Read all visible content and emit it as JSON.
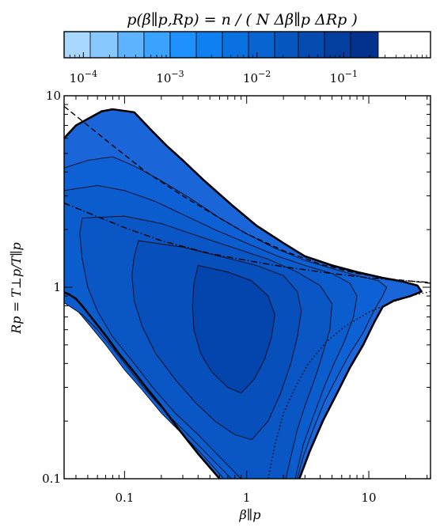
{
  "chart_data": {
    "type": "heatmap",
    "title": "p(β∥p,Rp) = n / ( N Δβ∥p ΔRp )",
    "xlabel": "β∥p",
    "ylabel": "Rp = T⊥p/T∥p",
    "x_scale": "log",
    "y_scale": "log",
    "xlim": [
      0.032,
      32
    ],
    "ylim": [
      0.1,
      10
    ],
    "x_ticks": [
      {
        "value": 0.1,
        "label": "0.1"
      },
      {
        "value": 1,
        "label": "1"
      },
      {
        "value": 10,
        "label": "10"
      }
    ],
    "y_ticks": [
      {
        "value": 0.1,
        "label": "0.1"
      },
      {
        "value": 1,
        "label": "1"
      },
      {
        "value": 10,
        "label": "10"
      }
    ],
    "colorbar": {
      "scale": "log",
      "range": [
        6e-05,
        1
      ],
      "ticks": [
        {
          "value": 0.0001,
          "base": "10",
          "exp": "−4"
        },
        {
          "value": 0.001,
          "base": "10",
          "exp": "−3"
        },
        {
          "value": 0.01,
          "base": "10",
          "exp": "−2"
        },
        {
          "value": 0.1,
          "base": "10",
          "exp": "−1"
        }
      ],
      "levels": [
        6e-05,
        0.00012,
        0.00025,
        0.0005,
        0.001,
        0.002,
        0.004,
        0.008,
        0.016,
        0.03,
        0.06,
        0.12,
        0.25,
        1
      ],
      "colors": [
        "#a8d8ff",
        "#86c8ff",
        "#5fb4ff",
        "#3aa2ff",
        "#1f90ff",
        "#0e80f2",
        "#0a72e0",
        "#0864d0",
        "#0657c0",
        "#054bb0",
        "#033f9f",
        "#02328d"
      ]
    },
    "contour_regions": [
      {
        "level": 0,
        "color": "#1a66d9",
        "points": [
          [
            0.032,
            6.0
          ],
          [
            0.04,
            7.0
          ],
          [
            0.065,
            8.3
          ],
          [
            0.08,
            8.5
          ],
          [
            0.12,
            8.2
          ],
          [
            0.17,
            6.5
          ],
          [
            0.22,
            5.5
          ],
          [
            0.3,
            4.6
          ],
          [
            0.45,
            3.6
          ],
          [
            0.75,
            2.7
          ],
          [
            1.2,
            2.1
          ],
          [
            2.0,
            1.7
          ],
          [
            3.0,
            1.45
          ],
          [
            5.0,
            1.3
          ],
          [
            8.0,
            1.2
          ],
          [
            13,
            1.12
          ],
          [
            19,
            1.07
          ],
          [
            25,
            1.02
          ],
          [
            27,
            0.95
          ],
          [
            22,
            0.9
          ],
          [
            16,
            0.85
          ],
          [
            13,
            0.79
          ],
          [
            11,
            0.65
          ],
          [
            9,
            0.5
          ],
          [
            7,
            0.38
          ],
          [
            5.5,
            0.28
          ],
          [
            4.2,
            0.2
          ],
          [
            3.3,
            0.14
          ],
          [
            2.7,
            0.1
          ],
          [
            0.6,
            0.1
          ],
          [
            0.4,
            0.135
          ],
          [
            0.28,
            0.18
          ],
          [
            0.2,
            0.24
          ],
          [
            0.15,
            0.3
          ],
          [
            0.12,
            0.36
          ],
          [
            0.09,
            0.45
          ],
          [
            0.07,
            0.56
          ],
          [
            0.055,
            0.68
          ],
          [
            0.045,
            0.8
          ],
          [
            0.04,
            0.87
          ],
          [
            0.035,
            0.92
          ],
          [
            0.032,
            0.94
          ]
        ]
      },
      {
        "level": 1,
        "color": "#0e61d4",
        "points": [
          [
            0.032,
            4.2
          ],
          [
            0.05,
            4.6
          ],
          [
            0.08,
            4.8
          ],
          [
            0.12,
            4.3
          ],
          [
            0.2,
            3.6
          ],
          [
            0.35,
            2.9
          ],
          [
            0.6,
            2.3
          ],
          [
            1.0,
            1.9
          ],
          [
            1.7,
            1.6
          ],
          [
            3.0,
            1.38
          ],
          [
            5.0,
            1.25
          ],
          [
            8.0,
            1.15
          ],
          [
            12,
            1.08
          ],
          [
            14,
            1.0
          ],
          [
            13,
            0.9
          ],
          [
            11,
            0.75
          ],
          [
            9,
            0.58
          ],
          [
            7,
            0.45
          ],
          [
            5.5,
            0.34
          ],
          [
            4.3,
            0.25
          ],
          [
            3.5,
            0.18
          ],
          [
            2.9,
            0.13
          ],
          [
            2.6,
            0.1
          ],
          [
            0.65,
            0.1
          ],
          [
            0.45,
            0.13
          ],
          [
            0.3,
            0.17
          ],
          [
            0.2,
            0.22
          ],
          [
            0.14,
            0.29
          ],
          [
            0.1,
            0.37
          ],
          [
            0.07,
            0.5
          ],
          [
            0.05,
            0.65
          ],
          [
            0.038,
            0.8
          ],
          [
            0.032,
            0.86
          ]
        ]
      },
      {
        "level": 2,
        "color": "#0b5ccd",
        "points": [
          [
            0.032,
            3.2
          ],
          [
            0.06,
            3.4
          ],
          [
            0.1,
            3.2
          ],
          [
            0.18,
            2.8
          ],
          [
            0.3,
            2.4
          ],
          [
            0.55,
            2.0
          ],
          [
            1.0,
            1.7
          ],
          [
            1.8,
            1.45
          ],
          [
            3.0,
            1.3
          ],
          [
            5.0,
            1.18
          ],
          [
            7.0,
            1.05
          ],
          [
            8.0,
            0.9
          ],
          [
            7.5,
            0.7
          ],
          [
            6.3,
            0.52
          ],
          [
            5.2,
            0.4
          ],
          [
            4.3,
            0.3
          ],
          [
            3.5,
            0.21
          ],
          [
            2.9,
            0.15
          ],
          [
            2.5,
            0.1
          ],
          [
            0.75,
            0.1
          ],
          [
            0.5,
            0.13
          ],
          [
            0.33,
            0.17
          ],
          [
            0.22,
            0.22
          ],
          [
            0.15,
            0.29
          ],
          [
            0.11,
            0.37
          ],
          [
            0.08,
            0.48
          ],
          [
            0.06,
            0.6
          ],
          [
            0.045,
            0.72
          ],
          [
            0.035,
            0.8
          ],
          [
            0.032,
            0.83
          ]
        ]
      },
      {
        "level": 3,
        "color": "#0956c4",
        "points": [
          [
            0.045,
            2.3
          ],
          [
            0.1,
            2.35
          ],
          [
            0.2,
            2.15
          ],
          [
            0.4,
            1.85
          ],
          [
            0.8,
            1.6
          ],
          [
            1.5,
            1.4
          ],
          [
            2.6,
            1.2
          ],
          [
            4.0,
            1.02
          ],
          [
            5.0,
            0.82
          ],
          [
            4.8,
            0.6
          ],
          [
            4.2,
            0.45
          ],
          [
            3.6,
            0.33
          ],
          [
            3.0,
            0.24
          ],
          [
            2.6,
            0.18
          ],
          [
            2.3,
            0.13
          ],
          [
            2.1,
            0.1
          ],
          [
            0.9,
            0.1
          ],
          [
            0.6,
            0.13
          ],
          [
            0.4,
            0.17
          ],
          [
            0.26,
            0.22
          ],
          [
            0.17,
            0.3
          ],
          [
            0.12,
            0.4
          ],
          [
            0.08,
            0.55
          ],
          [
            0.06,
            0.75
          ],
          [
            0.05,
            1.0
          ],
          [
            0.045,
            1.4
          ],
          [
            0.043,
            1.9
          ]
        ]
      },
      {
        "level": 4,
        "color": "#074fba",
        "points": [
          [
            0.13,
            1.75
          ],
          [
            0.3,
            1.62
          ],
          [
            0.6,
            1.45
          ],
          [
            1.2,
            1.3
          ],
          [
            2.0,
            1.15
          ],
          [
            2.6,
            0.95
          ],
          [
            2.8,
            0.75
          ],
          [
            2.6,
            0.55
          ],
          [
            2.3,
            0.4
          ],
          [
            1.9,
            0.28
          ],
          [
            1.5,
            0.2
          ],
          [
            1.1,
            0.16
          ],
          [
            0.8,
            0.17
          ],
          [
            0.55,
            0.2
          ],
          [
            0.38,
            0.25
          ],
          [
            0.26,
            0.33
          ],
          [
            0.18,
            0.45
          ],
          [
            0.14,
            0.62
          ],
          [
            0.12,
            0.85
          ],
          [
            0.115,
            1.15
          ],
          [
            0.12,
            1.45
          ]
        ]
      },
      {
        "level": 5,
        "color": "#0345ac",
        "points": [
          [
            0.4,
            1.3
          ],
          [
            0.7,
            1.2
          ],
          [
            1.1,
            1.08
          ],
          [
            1.5,
            0.9
          ],
          [
            1.7,
            0.72
          ],
          [
            1.6,
            0.55
          ],
          [
            1.4,
            0.42
          ],
          [
            1.15,
            0.33
          ],
          [
            0.9,
            0.28
          ],
          [
            0.7,
            0.3
          ],
          [
            0.52,
            0.36
          ],
          [
            0.42,
            0.45
          ],
          [
            0.37,
            0.6
          ],
          [
            0.36,
            0.8
          ],
          [
            0.37,
            1.05
          ]
        ]
      }
    ],
    "contour_lines": [
      {
        "style": "solid",
        "points": [
          [
            0.032,
            6.0
          ],
          [
            0.04,
            7.0
          ],
          [
            0.065,
            8.3
          ],
          [
            0.08,
            8.5
          ],
          [
            0.12,
            8.2
          ],
          [
            0.17,
            6.5
          ],
          [
            0.22,
            5.5
          ],
          [
            0.3,
            4.6
          ],
          [
            0.45,
            3.6
          ],
          [
            0.75,
            2.7
          ],
          [
            1.2,
            2.1
          ],
          [
            2.0,
            1.7
          ],
          [
            3.0,
            1.45
          ],
          [
            5.0,
            1.3
          ],
          [
            8.0,
            1.2
          ],
          [
            13,
            1.12
          ],
          [
            19,
            1.07
          ],
          [
            25,
            1.02
          ],
          [
            27,
            0.95
          ],
          [
            22,
            0.9
          ],
          [
            16,
            0.85
          ],
          [
            13,
            0.79
          ],
          [
            11,
            0.65
          ],
          [
            9,
            0.5
          ],
          [
            7,
            0.38
          ],
          [
            5.5,
            0.28
          ],
          [
            4.2,
            0.2
          ],
          [
            3.3,
            0.14
          ],
          [
            2.7,
            0.1
          ]
        ]
      },
      {
        "style": "solid",
        "points": [
          [
            0.6,
            0.1
          ],
          [
            0.4,
            0.135
          ],
          [
            0.28,
            0.18
          ],
          [
            0.2,
            0.24
          ],
          [
            0.15,
            0.3
          ],
          [
            0.12,
            0.36
          ],
          [
            0.09,
            0.45
          ],
          [
            0.07,
            0.56
          ],
          [
            0.055,
            0.68
          ],
          [
            0.045,
            0.8
          ],
          [
            0.04,
            0.87
          ],
          [
            0.035,
            0.92
          ],
          [
            0.032,
            0.94
          ]
        ]
      }
    ],
    "curves": [
      {
        "style": "dashed",
        "points": [
          [
            0.032,
            8.8
          ],
          [
            0.05,
            7.0
          ],
          [
            0.08,
            5.5
          ],
          [
            0.15,
            4.0
          ],
          [
            0.3,
            3.0
          ],
          [
            0.6,
            2.3
          ],
          [
            1.0,
            1.9
          ],
          [
            2.0,
            1.55
          ],
          [
            4.0,
            1.32
          ],
          [
            8.0,
            1.18
          ],
          [
            16,
            1.1
          ],
          [
            32,
            1.05
          ]
        ]
      },
      {
        "style": "dash-dot",
        "points": [
          [
            0.032,
            2.75
          ],
          [
            0.05,
            2.45
          ],
          [
            0.1,
            2.05
          ],
          [
            0.2,
            1.75
          ],
          [
            0.5,
            1.5
          ],
          [
            1.0,
            1.38
          ],
          [
            2.0,
            1.28
          ],
          [
            5.0,
            1.18
          ],
          [
            10,
            1.12
          ],
          [
            20,
            1.08
          ],
          [
            32,
            1.06
          ]
        ]
      },
      {
        "style": "dotted",
        "points": [
          [
            1.5,
            0.1
          ],
          [
            1.7,
            0.15
          ],
          [
            2.0,
            0.22
          ],
          [
            2.5,
            0.3
          ],
          [
            3.2,
            0.4
          ],
          [
            4.5,
            0.52
          ],
          [
            6.5,
            0.63
          ],
          [
            10,
            0.74
          ],
          [
            15,
            0.83
          ],
          [
            22,
            0.9
          ],
          [
            32,
            0.95
          ]
        ]
      }
    ]
  }
}
